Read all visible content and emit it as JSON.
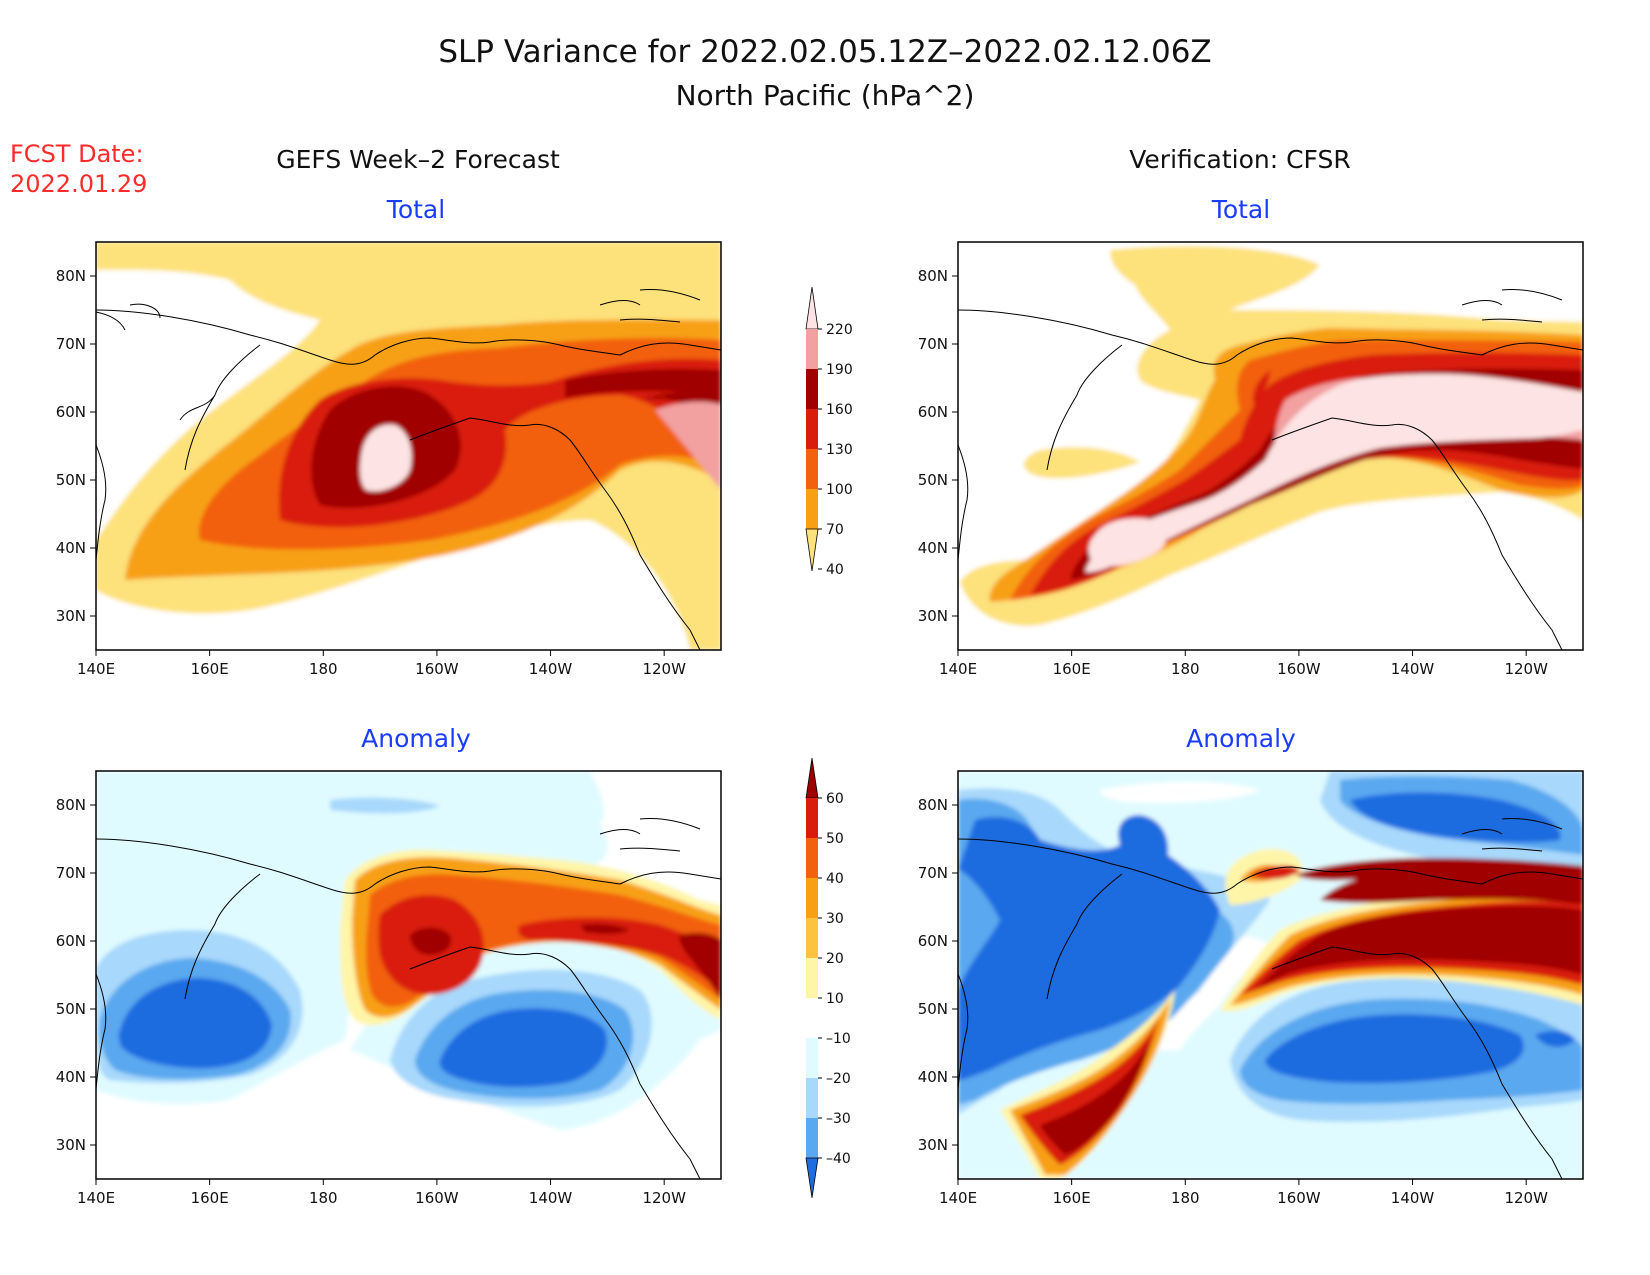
{
  "title_line1": "SLP Variance for 2022.02.05.12Z–2022.02.12.06Z",
  "title_line2": "North Pacific (hPa^2)",
  "fcst_label": "FCST Date:",
  "fcst_date": "2022.01.29",
  "left_header": "GEFS Week–2 Forecast",
  "right_header": "Verification: CFSR",
  "panel_titles": {
    "total": "Total",
    "anomaly": "Anomaly"
  },
  "colors": {
    "title_blue": "#1a3cff",
    "fcst_red": "#ff2a2a"
  },
  "axes": {
    "lon_labels": [
      "140E",
      "160E",
      "180",
      "160W",
      "140W",
      "120W"
    ],
    "lat_labels": [
      "30N",
      "40N",
      "50N",
      "60N",
      "70N",
      "80N"
    ],
    "lon_range": [
      "140E",
      "110W"
    ],
    "lat_range": [
      "25N",
      "85N"
    ]
  },
  "colorbars": {
    "total": {
      "levels": [
        "220",
        "190",
        "160",
        "130",
        "100",
        "70",
        "40"
      ],
      "fills": [
        "#fde3e3",
        "#f2a0a0",
        "#a00000",
        "#d91c0c",
        "#f2610d",
        "#f7a013",
        "#fde17a"
      ]
    },
    "anomaly": {
      "levels": [
        "60",
        "50",
        "40",
        "30",
        "20",
        "10",
        "–10",
        "–20",
        "–30",
        "–40"
      ],
      "fills": [
        "#9e0000",
        "#d91c0c",
        "#f2610d",
        "#f7a013",
        "#fbc33f",
        "#fff5a8",
        "#ffffff",
        "#e0fbff",
        "#a8d8fb",
        "#5aa8ef",
        "#1e6ce0"
      ]
    }
  }
}
